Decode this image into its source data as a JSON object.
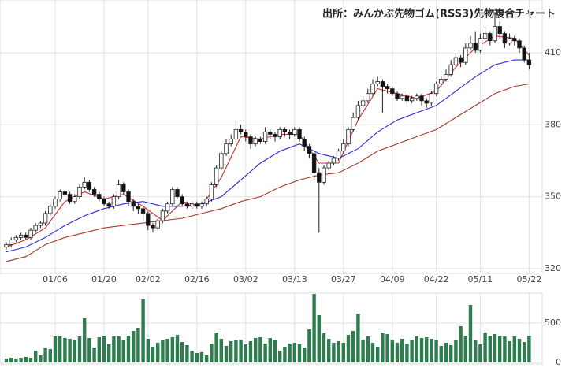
{
  "chart_data": [
    {
      "type": "candlestick",
      "title": "出所：みんかぶ先物ゴム(RSS3)先物複合チャート",
      "categories": [
        null,
        null,
        null,
        null,
        null,
        null,
        null,
        null,
        null,
        null,
        "01/06",
        null,
        null,
        null,
        null,
        null,
        null,
        null,
        null,
        null,
        "01/20",
        null,
        null,
        null,
        null,
        null,
        null,
        null,
        null,
        "02/02",
        null,
        null,
        null,
        null,
        null,
        null,
        null,
        null,
        null,
        "02/16",
        null,
        null,
        null,
        null,
        null,
        null,
        null,
        null,
        null,
        "03/02",
        null,
        null,
        null,
        null,
        null,
        null,
        null,
        null,
        null,
        "03/13",
        null,
        null,
        null,
        null,
        null,
        null,
        null,
        null,
        null,
        "03/27",
        null,
        null,
        null,
        null,
        null,
        null,
        null,
        null,
        null,
        "04/09",
        null,
        null,
        null,
        null,
        null,
        null,
        null,
        null,
        "04/22",
        null,
        null,
        null,
        null,
        null,
        null,
        null,
        null,
        "05/11",
        null,
        null,
        null,
        null,
        null,
        null,
        null,
        null,
        null,
        "05/22"
      ],
      "open": [
        329,
        330,
        332,
        333,
        334,
        333,
        336,
        338,
        339,
        343,
        346,
        349,
        352,
        351,
        348,
        350,
        354,
        356,
        353,
        351,
        349,
        347,
        346,
        350,
        355,
        352,
        348,
        346,
        345,
        343,
        338,
        337,
        340,
        344,
        347,
        353,
        350,
        347,
        346,
        347,
        346,
        347,
        349,
        355,
        362,
        368,
        372,
        374,
        378,
        377,
        375,
        372,
        374,
        373,
        377,
        376,
        375,
        378,
        377,
        376,
        378,
        374,
        371,
        368,
        360,
        356,
        362,
        364,
        366,
        369,
        372,
        378,
        383,
        388,
        390,
        393,
        397,
        398,
        396,
        395,
        393,
        391,
        392,
        390,
        391,
        392,
        390,
        389,
        393,
        397,
        399,
        401,
        405,
        408,
        406,
        412,
        414,
        411,
        416,
        418,
        415,
        421,
        418,
        414,
        416,
        415,
        412,
        407
      ],
      "high": [
        331,
        333,
        334,
        335,
        335,
        337,
        339,
        340,
        344,
        347,
        350,
        353,
        353,
        352,
        351,
        355,
        358,
        357,
        354,
        352,
        350,
        348,
        351,
        357,
        356,
        353,
        349,
        347,
        346,
        344,
        339,
        341,
        345,
        348,
        354,
        354,
        351,
        348,
        348,
        348,
        348,
        350,
        356,
        363,
        369,
        374,
        376,
        382,
        380,
        378,
        376,
        375,
        375,
        379,
        378,
        377,
        379,
        379,
        378,
        379,
        379,
        375,
        372,
        369,
        362,
        363,
        365,
        367,
        370,
        374,
        379,
        385,
        390,
        392,
        395,
        399,
        400,
        399,
        397,
        396,
        394,
        393,
        393,
        392,
        393,
        393,
        391,
        394,
        398,
        400,
        403,
        407,
        410,
        409,
        414,
        417,
        419,
        418,
        421,
        419,
        427,
        423,
        419,
        418,
        417,
        416,
        413,
        410
      ],
      "low": [
        328,
        329,
        331,
        332,
        332,
        332,
        335,
        337,
        338,
        342,
        345,
        348,
        350,
        347,
        347,
        349,
        353,
        352,
        350,
        348,
        346,
        345,
        345,
        349,
        351,
        346,
        344,
        343,
        340,
        336,
        335,
        336,
        339,
        343,
        346,
        349,
        346,
        345,
        345,
        345,
        345,
        346,
        348,
        354,
        361,
        367,
        371,
        373,
        376,
        373,
        370,
        371,
        372,
        372,
        374,
        373,
        374,
        375,
        374,
        375,
        373,
        369,
        366,
        357,
        335,
        355,
        361,
        363,
        365,
        368,
        371,
        377,
        382,
        387,
        389,
        392,
        396,
        385,
        393,
        392,
        390,
        390,
        389,
        389,
        390,
        388,
        387,
        388,
        392,
        396,
        398,
        400,
        404,
        404,
        405,
        411,
        410,
        410,
        415,
        413,
        414,
        416,
        412,
        413,
        413,
        410,
        406,
        403
      ],
      "close": [
        330,
        332,
        333,
        334,
        333,
        336,
        338,
        339,
        343,
        346,
        349,
        352,
        351,
        348,
        350,
        354,
        356,
        353,
        351,
        349,
        347,
        346,
        350,
        355,
        352,
        348,
        346,
        345,
        343,
        338,
        337,
        340,
        344,
        347,
        353,
        350,
        347,
        346,
        347,
        346,
        347,
        349,
        355,
        362,
        368,
        372,
        374,
        378,
        377,
        375,
        372,
        374,
        373,
        377,
        376,
        375,
        378,
        377,
        376,
        378,
        374,
        371,
        368,
        360,
        356,
        362,
        364,
        366,
        369,
        372,
        378,
        383,
        388,
        390,
        393,
        397,
        398,
        396,
        395,
        393,
        391,
        392,
        390,
        391,
        392,
        390,
        389,
        393,
        397,
        399,
        401,
        405,
        408,
        406,
        412,
        414,
        411,
        416,
        418,
        415,
        421,
        418,
        414,
        416,
        415,
        412,
        407,
        405
      ],
      "up_color": "#ffffff",
      "down_color": "#111111",
      "outline_color": "#222222",
      "series": [
        {
          "color": "#d42a24",
          "x": [
            0,
            4,
            8,
            12,
            16,
            20,
            24,
            28,
            32,
            36,
            40,
            44,
            48,
            52,
            56,
            60,
            64,
            68,
            72,
            76,
            80,
            84,
            88,
            92,
            96,
            100,
            104,
            107
          ],
          "values": [
            329,
            332,
            337,
            348,
            352,
            349,
            351,
            346,
            340,
            348,
            346,
            358,
            375,
            374,
            376,
            376,
            364,
            364,
            382,
            395,
            393,
            391,
            394,
            404,
            412,
            417,
            416,
            409
          ]
        },
        {
          "color": "#2a2ae0",
          "x": [
            0,
            4,
            8,
            12,
            16,
            20,
            24,
            28,
            32,
            36,
            40,
            44,
            48,
            52,
            56,
            60,
            64,
            68,
            72,
            76,
            80,
            84,
            88,
            92,
            96,
            100,
            104,
            107
          ],
          "values": [
            327,
            329,
            333,
            338,
            342,
            345,
            347,
            348,
            346,
            346,
            347,
            350,
            357,
            364,
            369,
            372,
            368,
            366,
            370,
            377,
            382,
            385,
            388,
            394,
            400,
            405,
            407,
            407
          ]
        },
        {
          "color": "#a5392f",
          "x": [
            0,
            4,
            8,
            12,
            16,
            20,
            24,
            28,
            32,
            36,
            40,
            44,
            48,
            52,
            56,
            60,
            64,
            68,
            72,
            76,
            80,
            84,
            88,
            92,
            96,
            100,
            104,
            107
          ],
          "values": [
            323,
            325,
            330,
            333,
            335,
            337,
            338,
            339,
            340,
            341,
            343,
            345,
            348,
            350,
            354,
            357,
            359,
            360,
            364,
            369,
            372,
            375,
            378,
            383,
            388,
            393,
            396,
            397
          ]
        }
      ],
      "ylim": [
        318,
        432
      ],
      "yticks": [
        320,
        350,
        380,
        410
      ],
      "grid": true
    },
    {
      "type": "bar",
      "color": "#2e7d4f",
      "values": [
        50,
        60,
        50,
        60,
        70,
        60,
        150,
        90,
        190,
        170,
        330,
        330,
        310,
        300,
        290,
        330,
        560,
        310,
        190,
        320,
        340,
        230,
        330,
        330,
        280,
        340,
        400,
        440,
        800,
        300,
        200,
        250,
        280,
        300,
        320,
        350,
        260,
        220,
        150,
        120,
        130,
        90,
        240,
        380,
        300,
        210,
        270,
        280,
        290,
        230,
        270,
        310,
        320,
        240,
        310,
        280,
        150,
        200,
        240,
        250,
        230,
        190,
        420,
        870,
        600,
        370,
        300,
        250,
        270,
        250,
        350,
        400,
        620,
        290,
        330,
        250,
        200,
        380,
        360,
        290,
        250,
        300,
        240,
        290,
        330,
        310,
        320,
        300,
        280,
        210,
        250,
        220,
        280,
        460,
        340,
        730,
        280,
        230,
        380,
        340,
        360,
        340,
        330,
        270,
        330,
        300,
        260,
        340
      ],
      "ylim": [
        0,
        880
      ],
      "yticks": [
        0,
        500
      ],
      "grid": true
    }
  ]
}
